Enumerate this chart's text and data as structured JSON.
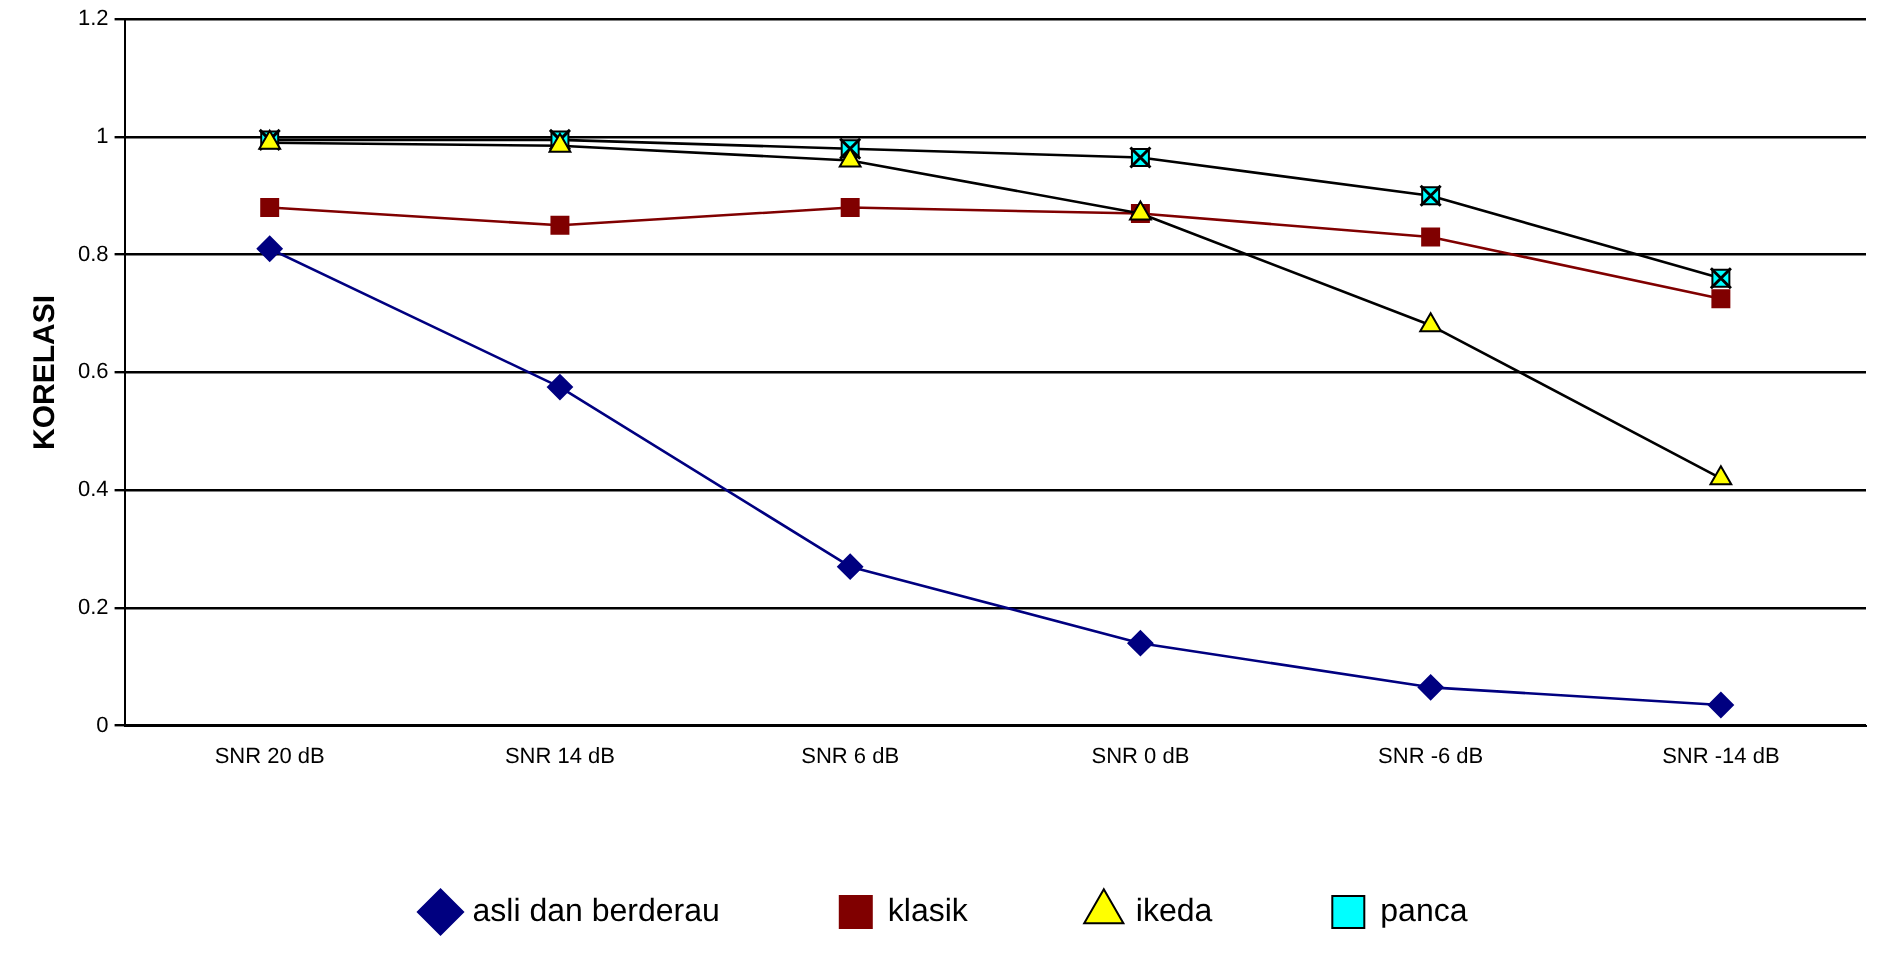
{
  "chart_data": {
    "type": "line",
    "ylabel": "KORELASI",
    "categories": [
      "SNR 20 dB",
      "SNR 14 dB",
      "SNR 6 dB",
      "SNR 0 dB",
      "SNR -6 dB",
      "SNR -14 dB"
    ],
    "series": [
      {
        "name": "asli dan berderau",
        "color": "#000080",
        "marker": "diamond",
        "values": [
          0.81,
          0.575,
          0.27,
          0.14,
          0.065,
          0.035
        ]
      },
      {
        "name": "klasik",
        "color": "#800000",
        "marker": "square",
        "values": [
          0.88,
          0.85,
          0.88,
          0.87,
          0.83,
          0.725
        ]
      },
      {
        "name": "ikeda",
        "color": "#000000",
        "marker": "triangle",
        "colors": [
          "#ffff00",
          "#ffff00",
          "#ffff00",
          "#ffff00",
          "#ffff00",
          "#ffff00"
        ],
        "values": [
          0.99,
          0.985,
          0.96,
          0.87,
          0.68,
          0.42
        ]
      },
      {
        "name": "panca",
        "color": "#000000",
        "marker": "square",
        "colors": [
          "#00ffff",
          "#00ffff",
          "#00ffff",
          "#00ffff",
          "#00ffff",
          "#00ffff"
        ],
        "values": [
          0.995,
          0.995,
          0.98,
          0.965,
          0.9,
          0.76
        ]
      }
    ],
    "ylim": [
      0,
      1.2
    ],
    "yticks": [
      0,
      0.2,
      0.4,
      0.6,
      0.8,
      1,
      1.2
    ],
    "grid": "y",
    "legend": "bottom"
  }
}
